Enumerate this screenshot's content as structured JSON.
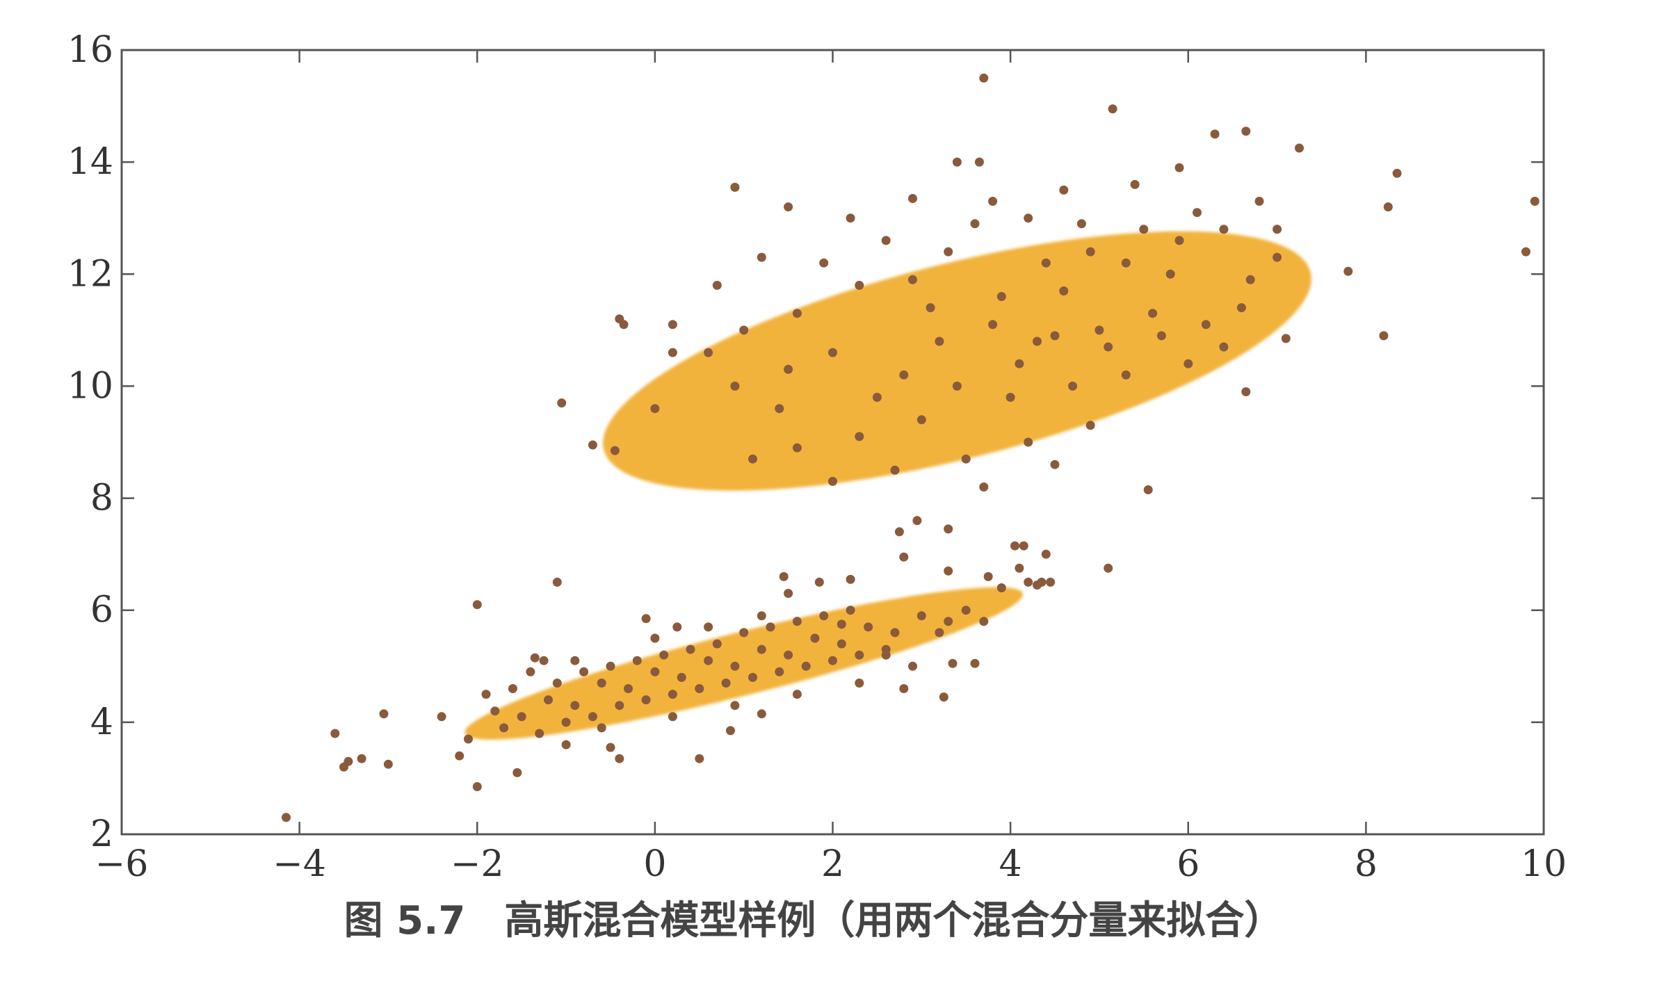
{
  "chart_data": {
    "type": "scatter",
    "xlim": [
      -6,
      10
    ],
    "ylim": [
      2,
      16
    ],
    "x_ticks": [
      -6,
      -4,
      -2,
      0,
      2,
      4,
      6,
      8,
      10
    ],
    "y_ticks": [
      2,
      4,
      6,
      8,
      10,
      12,
      14,
      16
    ],
    "x_tick_labels": [
      "−6",
      "−4",
      "−2",
      "0",
      "2",
      "4",
      "6",
      "8",
      "10"
    ],
    "y_tick_labels": [
      "2",
      "4",
      "6",
      "8",
      "10",
      "12",
      "14",
      "16"
    ],
    "grid": false,
    "ellipses": [
      {
        "center": [
          3.4,
          10.45
        ],
        "semi_major": 4.3,
        "semi_minor": 1.66,
        "angle_deg": 24,
        "color": "#F2B33D"
      },
      {
        "center": [
          1.0,
          5.05
        ],
        "semi_major": 3.38,
        "semi_minor": 0.54,
        "angle_deg": 22,
        "color": "#F2B33D"
      }
    ],
    "point_color": "#8A5A3C",
    "points": [
      [
        3.7,
        15.5
      ],
      [
        5.15,
        14.95
      ],
      [
        6.65,
        14.55
      ],
      [
        6.3,
        14.5
      ],
      [
        7.25,
        14.25
      ],
      [
        8.35,
        13.8
      ],
      [
        9.9,
        13.3
      ],
      [
        3.4,
        14.0
      ],
      [
        3.65,
        14.0
      ],
      [
        7.8,
        12.05
      ],
      [
        8.2,
        10.9
      ],
      [
        7.1,
        10.85
      ],
      [
        6.65,
        9.9
      ],
      [
        5.55,
        8.15
      ],
      [
        5.1,
        6.75
      ],
      [
        -0.4,
        11.2
      ],
      [
        -0.35,
        11.1
      ],
      [
        0.2,
        11.1
      ],
      [
        0.2,
        10.6
      ],
      [
        -1.05,
        9.7
      ],
      [
        0.0,
        9.6
      ],
      [
        -0.7,
        8.95
      ],
      [
        -0.45,
        8.85
      ],
      [
        8.25,
        13.2
      ],
      [
        9.8,
        12.4
      ],
      [
        2.75,
        7.4
      ],
      [
        2.8,
        6.95
      ],
      [
        3.3,
        7.45
      ],
      [
        3.3,
        6.7
      ],
      [
        3.75,
        6.6
      ],
      [
        4.05,
        7.15
      ],
      [
        4.15,
        7.15
      ],
      [
        4.35,
        6.5
      ],
      [
        4.45,
        6.5
      ],
      [
        4.1,
        6.75
      ],
      [
        4.4,
        7.0
      ],
      [
        2.95,
        7.6
      ],
      [
        4.2,
        6.5
      ],
      [
        4.3,
        6.45
      ],
      [
        3.9,
        6.4
      ],
      [
        3.5,
        6.0
      ],
      [
        3.7,
        5.8
      ],
      [
        3.2,
        5.6
      ],
      [
        3.35,
        5.05
      ],
      [
        3.6,
        5.05
      ],
      [
        3.25,
        4.45
      ],
      [
        2.8,
        4.6
      ],
      [
        2.6,
        5.2
      ],
      [
        2.1,
        5.75
      ],
      [
        1.45,
        6.6
      ],
      [
        2.2,
        6.55
      ],
      [
        1.85,
        6.5
      ],
      [
        1.5,
        6.3
      ],
      [
        -1.1,
        6.5
      ],
      [
        -2.0,
        6.1
      ],
      [
        -3.6,
        3.8
      ],
      [
        -3.05,
        4.15
      ],
      [
        -2.4,
        4.1
      ],
      [
        -3.45,
        3.3
      ],
      [
        -3.5,
        3.2
      ],
      [
        -3.3,
        3.35
      ],
      [
        -3.0,
        3.25
      ],
      [
        -4.15,
        2.3
      ],
      [
        -2.0,
        2.85
      ],
      [
        -1.55,
        3.1
      ],
      [
        -0.4,
        3.35
      ],
      [
        0.5,
        3.35
      ],
      [
        -2.2,
        3.4
      ],
      [
        -1.25,
        5.1
      ],
      [
        -1.35,
        5.15
      ],
      [
        -0.1,
        5.85
      ],
      [
        0.25,
        5.7
      ],
      [
        1.2,
        4.15
      ],
      [
        0.85,
        3.85
      ],
      [
        -0.5,
        3.55
      ],
      [
        0.9,
        13.55
      ],
      [
        1.5,
        13.2
      ],
      [
        2.2,
        13.0
      ],
      [
        2.9,
        13.35
      ],
      [
        3.8,
        13.3
      ],
      [
        4.6,
        13.5
      ],
      [
        5.4,
        13.6
      ],
      [
        5.9,
        13.9
      ],
      [
        4.4,
        12.2
      ],
      [
        4.9,
        12.4
      ],
      [
        5.8,
        12.0
      ],
      [
        6.2,
        11.1
      ],
      [
        6.6,
        11.4
      ],
      [
        7.0,
        12.8
      ],
      [
        6.8,
        13.3
      ],
      [
        5.6,
        11.3
      ],
      [
        5.0,
        11.0
      ],
      [
        4.3,
        10.8
      ],
      [
        3.9,
        11.6
      ],
      [
        3.1,
        11.4
      ],
      [
        2.3,
        11.8
      ],
      [
        1.6,
        11.3
      ],
      [
        1.0,
        11.0
      ],
      [
        0.6,
        10.6
      ],
      [
        0.9,
        10.0
      ],
      [
        1.5,
        10.3
      ],
      [
        2.0,
        10.6
      ],
      [
        2.8,
        10.2
      ],
      [
        3.4,
        10.0
      ],
      [
        4.0,
        9.8
      ],
      [
        4.7,
        10.0
      ],
      [
        5.3,
        10.2
      ],
      [
        6.0,
        10.4
      ],
      [
        6.4,
        10.7
      ],
      [
        3.0,
        9.4
      ],
      [
        2.3,
        9.1
      ],
      [
        1.6,
        8.9
      ],
      [
        1.1,
        8.7
      ],
      [
        2.0,
        8.3
      ],
      [
        2.7,
        8.5
      ],
      [
        3.5,
        8.7
      ],
      [
        4.2,
        9.0
      ],
      [
        4.9,
        9.3
      ],
      [
        3.7,
        8.2
      ],
      [
        4.5,
        8.6
      ],
      [
        1.4,
        9.6
      ],
      [
        2.5,
        9.8
      ],
      [
        3.2,
        10.8
      ],
      [
        4.1,
        10.4
      ],
      [
        4.6,
        11.7
      ],
      [
        5.3,
        12.2
      ],
      [
        5.9,
        12.6
      ],
      [
        6.4,
        12.8
      ],
      [
        7.0,
        12.3
      ],
      [
        6.7,
        11.9
      ],
      [
        3.3,
        12.4
      ],
      [
        2.6,
        12.6
      ],
      [
        1.9,
        12.2
      ],
      [
        1.2,
        12.3
      ],
      [
        0.7,
        11.8
      ],
      [
        3.6,
        12.9
      ],
      [
        4.2,
        13.0
      ],
      [
        4.8,
        12.9
      ],
      [
        5.5,
        12.8
      ],
      [
        6.1,
        13.1
      ],
      [
        2.9,
        11.9
      ],
      [
        3.8,
        11.1
      ],
      [
        4.5,
        10.9
      ],
      [
        5.1,
        10.7
      ],
      [
        5.7,
        10.9
      ],
      [
        -1.8,
        4.2
      ],
      [
        -1.5,
        4.1
      ],
      [
        -1.2,
        4.4
      ],
      [
        -0.9,
        4.3
      ],
      [
        -0.6,
        4.7
      ],
      [
        -0.3,
        4.6
      ],
      [
        0.0,
        4.9
      ],
      [
        0.3,
        4.8
      ],
      [
        0.6,
        5.1
      ],
      [
        0.9,
        5.0
      ],
      [
        1.2,
        5.3
      ],
      [
        1.5,
        5.2
      ],
      [
        1.8,
        5.5
      ],
      [
        2.1,
        5.4
      ],
      [
        2.4,
        5.7
      ],
      [
        2.7,
        5.6
      ],
      [
        3.0,
        5.9
      ],
      [
        3.3,
        5.8
      ],
      [
        -1.7,
        3.9
      ],
      [
        -1.3,
        3.8
      ],
      [
        -1.0,
        4.0
      ],
      [
        -0.7,
        4.1
      ],
      [
        -0.4,
        4.3
      ],
      [
        -0.1,
        4.4
      ],
      [
        0.2,
        4.5
      ],
      [
        0.5,
        4.6
      ],
      [
        0.8,
        4.7
      ],
      [
        1.1,
        4.8
      ],
      [
        1.4,
        4.9
      ],
      [
        1.7,
        5.0
      ],
      [
        2.0,
        5.1
      ],
      [
        2.3,
        5.2
      ],
      [
        2.6,
        5.3
      ],
      [
        -1.9,
        4.5
      ],
      [
        -1.6,
        4.6
      ],
      [
        -1.1,
        4.7
      ],
      [
        -0.8,
        4.9
      ],
      [
        -0.5,
        5.0
      ],
      [
        -0.2,
        5.1
      ],
      [
        0.1,
        5.2
      ],
      [
        0.4,
        5.3
      ],
      [
        0.7,
        5.4
      ],
      [
        1.0,
        5.6
      ],
      [
        1.3,
        5.7
      ],
      [
        1.6,
        5.8
      ],
      [
        1.9,
        5.9
      ],
      [
        2.2,
        6.0
      ],
      [
        -1.4,
        4.9
      ],
      [
        -0.9,
        5.1
      ],
      [
        0.0,
        5.5
      ],
      [
        0.6,
        5.7
      ],
      [
        1.2,
        5.9
      ],
      [
        -0.6,
        3.9
      ],
      [
        0.2,
        4.1
      ],
      [
        0.9,
        4.3
      ],
      [
        1.6,
        4.5
      ],
      [
        2.3,
        4.7
      ],
      [
        2.9,
        5.0
      ],
      [
        -2.1,
        3.7
      ],
      [
        -1.0,
        3.6
      ]
    ]
  },
  "caption": {
    "text": "图 5.7　高斯混合模型样例（用两个混合分量来拟合）"
  }
}
